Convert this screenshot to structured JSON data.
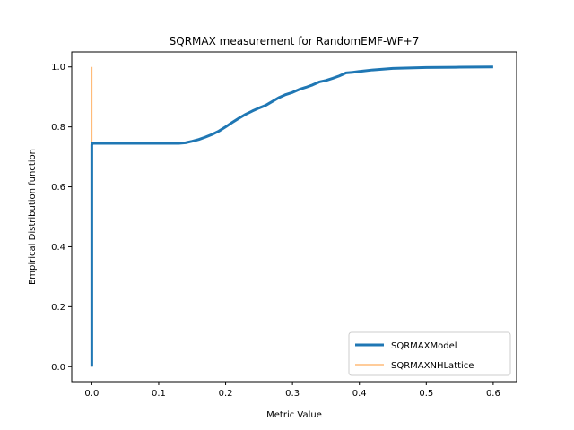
{
  "chart_data": {
    "type": "line",
    "title": "SQRMAX measurement for RandomEMF-WF+7",
    "xlabel": "Metric Value",
    "ylabel": "Empirical Distribution function",
    "xlim": [
      -0.03,
      0.635
    ],
    "ylim": [
      -0.05,
      1.05
    ],
    "xticks": [
      0.0,
      0.1,
      0.2,
      0.3,
      0.4,
      0.5,
      0.6
    ],
    "xtick_labels": [
      "0.0",
      "0.1",
      "0.2",
      "0.3",
      "0.4",
      "0.5",
      "0.6"
    ],
    "yticks": [
      0.0,
      0.2,
      0.4,
      0.6,
      0.8,
      1.0
    ],
    "ytick_labels": [
      "0.0",
      "0.2",
      "0.4",
      "0.6",
      "0.8",
      "1.0"
    ],
    "grid": false,
    "legend_position": "lower-right",
    "series": [
      {
        "name": "SQRMAXModel",
        "color": "#1f77b4",
        "x": [
          0.0,
          0.0,
          0.001,
          0.05,
          0.1,
          0.13,
          0.14,
          0.15,
          0.16,
          0.17,
          0.18,
          0.19,
          0.2,
          0.21,
          0.22,
          0.23,
          0.24,
          0.25,
          0.26,
          0.27,
          0.28,
          0.29,
          0.3,
          0.31,
          0.32,
          0.33,
          0.34,
          0.35,
          0.36,
          0.37,
          0.38,
          0.39,
          0.4,
          0.42,
          0.45,
          0.5,
          0.55,
          0.6
        ],
        "y": [
          0.0,
          0.74,
          0.745,
          0.745,
          0.745,
          0.745,
          0.747,
          0.752,
          0.758,
          0.766,
          0.775,
          0.786,
          0.8,
          0.815,
          0.829,
          0.842,
          0.853,
          0.863,
          0.872,
          0.885,
          0.898,
          0.908,
          0.915,
          0.925,
          0.932,
          0.94,
          0.95,
          0.955,
          0.962,
          0.97,
          0.98,
          0.982,
          0.985,
          0.99,
          0.995,
          0.998,
          0.999,
          1.0
        ]
      },
      {
        "name": "SQRMAXNHLattice",
        "color": "#ffbb78",
        "x": [
          0.0,
          0.0
        ],
        "y": [
          0.0,
          1.0
        ]
      }
    ]
  }
}
